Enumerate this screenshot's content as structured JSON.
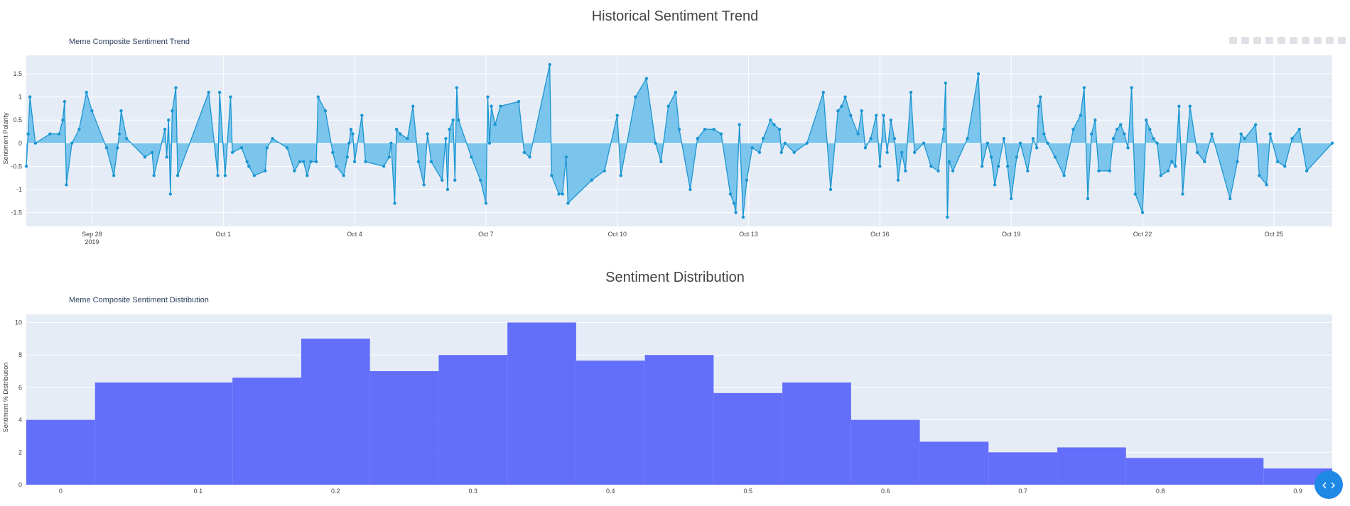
{
  "titles": {
    "trend_section": "Historical Sentiment Trend",
    "trend_chart": "Meme Composite Sentiment Trend",
    "dist_section": "Sentiment Distribution",
    "dist_chart": "Meme Composite Sentiment Distribution"
  },
  "colors": {
    "plot_bg": "#e5ecf6",
    "line": "#1b96d1",
    "fill": "#69bdea",
    "bar": "#636efa",
    "fab": "#1e88e5"
  },
  "fab_icon": "code-icon",
  "chart_data": [
    {
      "type": "area",
      "title": "Meme Composite Sentiment Trend",
      "ylabel": "Sentiment Polarity",
      "xlabel": "",
      "x_range": [
        "2019-09-26T12:00",
        "2019-10-26T08:00"
      ],
      "ylim": [
        -1.8,
        1.9
      ],
      "yticks": [
        -1.5,
        -1,
        -0.5,
        0,
        0.5,
        1,
        1.5
      ],
      "ytick_labels": [
        "-1.5",
        "-1",
        "-0.5",
        "0",
        "0.5",
        "1",
        "1.5"
      ],
      "xticks": [
        {
          "date": "2019-09-28T00:00",
          "label": "Sep 28",
          "sub": "2019"
        },
        {
          "date": "2019-10-01T00:00",
          "label": "Oct 1",
          "sub": ""
        },
        {
          "date": "2019-10-04T00:00",
          "label": "Oct 4",
          "sub": ""
        },
        {
          "date": "2019-10-07T00:00",
          "label": "Oct 7",
          "sub": ""
        },
        {
          "date": "2019-10-10T00:00",
          "label": "Oct 10",
          "sub": ""
        },
        {
          "date": "2019-10-13T00:00",
          "label": "Oct 13",
          "sub": ""
        },
        {
          "date": "2019-10-16T00:00",
          "label": "Oct 16",
          "sub": ""
        },
        {
          "date": "2019-10-19T00:00",
          "label": "Oct 19",
          "sub": ""
        },
        {
          "date": "2019-10-22T00:00",
          "label": "Oct 22",
          "sub": ""
        },
        {
          "date": "2019-10-25T00:00",
          "label": "Oct 25",
          "sub": ""
        }
      ],
      "points": [
        [
          "2019-09-26T12:00",
          -0.5
        ],
        [
          "2019-09-26T13:00",
          0.2
        ],
        [
          "2019-09-26T14:00",
          1.0
        ],
        [
          "2019-09-26T17:00",
          0.0
        ],
        [
          "2019-09-27T01:00",
          0.2
        ],
        [
          "2019-09-27T06:00",
          0.2
        ],
        [
          "2019-09-27T08:00",
          0.5
        ],
        [
          "2019-09-27T09:00",
          0.9
        ],
        [
          "2019-09-27T10:00",
          -0.9
        ],
        [
          "2019-09-27T13:00",
          0.0
        ],
        [
          "2019-09-27T17:00",
          0.3
        ],
        [
          "2019-09-27T21:00",
          1.1
        ],
        [
          "2019-09-28T00:00",
          0.7
        ],
        [
          "2019-09-28T08:00",
          -0.1
        ],
        [
          "2019-09-28T12:00",
          -0.7
        ],
        [
          "2019-09-28T14:00",
          -0.1
        ],
        [
          "2019-09-28T15:00",
          0.2
        ],
        [
          "2019-09-28T16:00",
          0.7
        ],
        [
          "2019-09-28T19:00",
          0.1
        ],
        [
          "2019-09-29T05:00",
          -0.3
        ],
        [
          "2019-09-29T09:00",
          -0.2
        ],
        [
          "2019-09-29T10:00",
          -0.7
        ],
        [
          "2019-09-29T16:00",
          0.3
        ],
        [
          "2019-09-29T17:00",
          -0.3
        ],
        [
          "2019-09-29T18:00",
          0.5
        ],
        [
          "2019-09-29T19:00",
          -1.1
        ],
        [
          "2019-09-29T20:00",
          0.7
        ],
        [
          "2019-09-29T22:00",
          1.2
        ],
        [
          "2019-09-29T23:00",
          -0.7
        ],
        [
          "2019-09-30T16:00",
          1.1
        ],
        [
          "2019-09-30T21:00",
          -0.7
        ],
        [
          "2019-09-30T22:00",
          1.1
        ],
        [
          "2019-10-01T01:00",
          -0.7
        ],
        [
          "2019-10-01T04:00",
          1.0
        ],
        [
          "2019-10-01T05:00",
          -0.2
        ],
        [
          "2019-10-01T10:00",
          -0.1
        ],
        [
          "2019-10-01T13:00",
          -0.4
        ],
        [
          "2019-10-01T14:00",
          -0.5
        ],
        [
          "2019-10-01T17:00",
          -0.7
        ],
        [
          "2019-10-01T23:00",
          -0.6
        ],
        [
          "2019-10-02T00:00",
          -0.1
        ],
        [
          "2019-10-02T03:00",
          0.1
        ],
        [
          "2019-10-02T11:00",
          -0.1
        ],
        [
          "2019-10-02T15:00",
          -0.6
        ],
        [
          "2019-10-02T18:00",
          -0.4
        ],
        [
          "2019-10-02T20:00",
          -0.4
        ],
        [
          "2019-10-02T22:00",
          -0.7
        ],
        [
          "2019-10-03T00:00",
          -0.4
        ],
        [
          "2019-10-03T03:00",
          -0.4
        ],
        [
          "2019-10-03T04:00",
          1.0
        ],
        [
          "2019-10-03T08:00",
          0.7
        ],
        [
          "2019-10-03T12:00",
          -0.2
        ],
        [
          "2019-10-03T14:00",
          -0.5
        ],
        [
          "2019-10-03T18:00",
          -0.7
        ],
        [
          "2019-10-03T20:00",
          -0.3
        ],
        [
          "2019-10-03T21:00",
          0.0
        ],
        [
          "2019-10-03T22:00",
          0.3
        ],
        [
          "2019-10-03T23:00",
          0.2
        ],
        [
          "2019-10-04T00:00",
          -0.4
        ],
        [
          "2019-10-04T04:00",
          0.6
        ],
        [
          "2019-10-04T06:00",
          -0.4
        ],
        [
          "2019-10-04T16:00",
          -0.5
        ],
        [
          "2019-10-04T19:00",
          -0.3
        ],
        [
          "2019-10-04T20:00",
          0.0
        ],
        [
          "2019-10-04T22:00",
          -1.3
        ],
        [
          "2019-10-04T23:00",
          0.3
        ],
        [
          "2019-10-05T01:00",
          0.2
        ],
        [
          "2019-10-05T05:00",
          0.1
        ],
        [
          "2019-10-05T08:00",
          0.8
        ],
        [
          "2019-10-05T11:00",
          -0.4
        ],
        [
          "2019-10-05T14:00",
          -0.9
        ],
        [
          "2019-10-05T16:00",
          0.2
        ],
        [
          "2019-10-05T18:00",
          -0.4
        ],
        [
          "2019-10-06T00:00",
          -0.8
        ],
        [
          "2019-10-06T02:00",
          0.1
        ],
        [
          "2019-10-06T03:00",
          -1.0
        ],
        [
          "2019-10-06T04:00",
          0.3
        ],
        [
          "2019-10-06T06:00",
          0.5
        ],
        [
          "2019-10-06T07:00",
          -0.8
        ],
        [
          "2019-10-06T08:00",
          1.2
        ],
        [
          "2019-10-06T09:00",
          0.5
        ],
        [
          "2019-10-06T16:00",
          -0.3
        ],
        [
          "2019-10-06T21:00",
          -0.8
        ],
        [
          "2019-10-07T00:00",
          -1.3
        ],
        [
          "2019-10-07T01:00",
          1.0
        ],
        [
          "2019-10-07T02:00",
          0.0
        ],
        [
          "2019-10-07T03:00",
          0.8
        ],
        [
          "2019-10-07T05:00",
          0.4
        ],
        [
          "2019-10-07T08:00",
          0.8
        ],
        [
          "2019-10-07T18:00",
          0.9
        ],
        [
          "2019-10-07T21:00",
          -0.2
        ],
        [
          "2019-10-08T00:00",
          -0.3
        ],
        [
          "2019-10-08T11:00",
          1.7
        ],
        [
          "2019-10-08T12:00",
          -0.7
        ],
        [
          "2019-10-08T16:00",
          -1.1
        ],
        [
          "2019-10-08T18:00",
          -1.1
        ],
        [
          "2019-10-08T20:00",
          -0.3
        ],
        [
          "2019-10-08T21:00",
          -1.3
        ],
        [
          "2019-10-09T10:00",
          -0.8
        ],
        [
          "2019-10-09T17:00",
          -0.6
        ],
        [
          "2019-10-10T00:00",
          0.6
        ],
        [
          "2019-10-10T02:00",
          -0.7
        ],
        [
          "2019-10-10T10:00",
          1.0
        ],
        [
          "2019-10-10T16:00",
          1.4
        ],
        [
          "2019-10-10T21:00",
          0.0
        ],
        [
          "2019-10-11T00:00",
          -0.4
        ],
        [
          "2019-10-11T04:00",
          0.8
        ],
        [
          "2019-10-11T08:00",
          1.1
        ],
        [
          "2019-10-11T10:00",
          0.3
        ],
        [
          "2019-10-11T16:00",
          -1.0
        ],
        [
          "2019-10-11T20:00",
          0.1
        ],
        [
          "2019-10-12T00:00",
          0.3
        ],
        [
          "2019-10-12T05:00",
          0.3
        ],
        [
          "2019-10-12T09:00",
          0.2
        ],
        [
          "2019-10-12T14:00",
          -1.1
        ],
        [
          "2019-10-12T16:00",
          -1.3
        ],
        [
          "2019-10-12T17:00",
          -1.5
        ],
        [
          "2019-10-12T19:00",
          0.4
        ],
        [
          "2019-10-12T21:00",
          -1.6
        ],
        [
          "2019-10-12T23:00",
          -0.8
        ],
        [
          "2019-10-13T02:00",
          -0.1
        ],
        [
          "2019-10-13T06:00",
          -0.2
        ],
        [
          "2019-10-13T08:00",
          0.1
        ],
        [
          "2019-10-13T12:00",
          0.5
        ],
        [
          "2019-10-13T14:00",
          0.4
        ],
        [
          "2019-10-13T17:00",
          0.3
        ],
        [
          "2019-10-13T18:00",
          -0.2
        ],
        [
          "2019-10-13T20:00",
          0.0
        ],
        [
          "2019-10-14T01:00",
          -0.2
        ],
        [
          "2019-10-14T08:00",
          0.0
        ],
        [
          "2019-10-14T17:00",
          1.1
        ],
        [
          "2019-10-14T21:00",
          -1.0
        ],
        [
          "2019-10-15T01:00",
          0.7
        ],
        [
          "2019-10-15T03:00",
          0.8
        ],
        [
          "2019-10-15T05:00",
          1.0
        ],
        [
          "2019-10-15T08:00",
          0.6
        ],
        [
          "2019-10-15T12:00",
          0.2
        ],
        [
          "2019-10-15T14:00",
          0.7
        ],
        [
          "2019-10-15T16:00",
          -0.1
        ],
        [
          "2019-10-15T19:00",
          0.1
        ],
        [
          "2019-10-15T22:00",
          0.6
        ],
        [
          "2019-10-16T00:00",
          -0.5
        ],
        [
          "2019-10-16T02:00",
          0.6
        ],
        [
          "2019-10-16T04:00",
          -0.2
        ],
        [
          "2019-10-16T06:00",
          0.5
        ],
        [
          "2019-10-16T08:00",
          0.1
        ],
        [
          "2019-10-16T10:00",
          -0.8
        ],
        [
          "2019-10-16T12:00",
          -0.2
        ],
        [
          "2019-10-16T14:00",
          -0.6
        ],
        [
          "2019-10-16T17:00",
          1.1
        ],
        [
          "2019-10-16T19:00",
          -0.2
        ],
        [
          "2019-10-17T00:00",
          0.0
        ],
        [
          "2019-10-17T04:00",
          -0.5
        ],
        [
          "2019-10-17T08:00",
          -0.6
        ],
        [
          "2019-10-17T11:00",
          0.3
        ],
        [
          "2019-10-17T12:00",
          1.3
        ],
        [
          "2019-10-17T13:00",
          -1.6
        ],
        [
          "2019-10-17T14:00",
          -0.4
        ],
        [
          "2019-10-17T16:00",
          -0.6
        ],
        [
          "2019-10-18T00:00",
          0.1
        ],
        [
          "2019-10-18T06:00",
          1.5
        ],
        [
          "2019-10-18T08:00",
          -0.5
        ],
        [
          "2019-10-18T11:00",
          0.0
        ],
        [
          "2019-10-18T13:00",
          -0.3
        ],
        [
          "2019-10-18T15:00",
          -0.9
        ],
        [
          "2019-10-18T17:00",
          -0.5
        ],
        [
          "2019-10-18T20:00",
          0.1
        ],
        [
          "2019-10-18T22:00",
          -0.5
        ],
        [
          "2019-10-19T00:00",
          -1.2
        ],
        [
          "2019-10-19T03:00",
          -0.3
        ],
        [
          "2019-10-19T05:00",
          0.0
        ],
        [
          "2019-10-19T09:00",
          -0.6
        ],
        [
          "2019-10-19T12:00",
          0.1
        ],
        [
          "2019-10-19T14:00",
          -0.1
        ],
        [
          "2019-10-19T15:00",
          0.8
        ],
        [
          "2019-10-19T16:00",
          1.0
        ],
        [
          "2019-10-19T18:00",
          0.2
        ],
        [
          "2019-10-19T20:00",
          0.0
        ],
        [
          "2019-10-20T00:00",
          -0.3
        ],
        [
          "2019-10-20T05:00",
          -0.7
        ],
        [
          "2019-10-20T10:00",
          0.3
        ],
        [
          "2019-10-20T14:00",
          0.6
        ],
        [
          "2019-10-20T16:00",
          1.2
        ],
        [
          "2019-10-20T18:00",
          -1.2
        ],
        [
          "2019-10-20T20:00",
          0.2
        ],
        [
          "2019-10-20T22:00",
          0.5
        ],
        [
          "2019-10-21T00:00",
          -0.6
        ],
        [
          "2019-10-21T06:00",
          -0.6
        ],
        [
          "2019-10-21T08:00",
          0.1
        ],
        [
          "2019-10-21T10:00",
          0.3
        ],
        [
          "2019-10-21T12:00",
          0.4
        ],
        [
          "2019-10-21T14:00",
          0.2
        ],
        [
          "2019-10-21T16:00",
          -0.1
        ],
        [
          "2019-10-21T18:00",
          1.2
        ],
        [
          "2019-10-21T20:00",
          -1.1
        ],
        [
          "2019-10-22T00:00",
          -1.5
        ],
        [
          "2019-10-22T02:00",
          0.5
        ],
        [
          "2019-10-22T04:00",
          0.3
        ],
        [
          "2019-10-22T06:00",
          0.1
        ],
        [
          "2019-10-22T08:00",
          0.0
        ],
        [
          "2019-10-22T10:00",
          -0.7
        ],
        [
          "2019-10-22T14:00",
          -0.6
        ],
        [
          "2019-10-22T16:00",
          -0.4
        ],
        [
          "2019-10-22T18:00",
          -0.5
        ],
        [
          "2019-10-22T20:00",
          0.8
        ],
        [
          "2019-10-22T22:00",
          -1.1
        ],
        [
          "2019-10-23T02:00",
          0.8
        ],
        [
          "2019-10-23T06:00",
          -0.2
        ],
        [
          "2019-10-23T10:00",
          -0.4
        ],
        [
          "2019-10-23T14:00",
          0.2
        ],
        [
          "2019-10-24T00:00",
          -1.2
        ],
        [
          "2019-10-24T04:00",
          -0.4
        ],
        [
          "2019-10-24T06:00",
          0.2
        ],
        [
          "2019-10-24T08:00",
          0.1
        ],
        [
          "2019-10-24T14:00",
          0.4
        ],
        [
          "2019-10-24T16:00",
          -0.7
        ],
        [
          "2019-10-24T20:00",
          -0.9
        ],
        [
          "2019-10-24T22:00",
          0.2
        ],
        [
          "2019-10-25T02:00",
          -0.4
        ],
        [
          "2019-10-25T06:00",
          -0.5
        ],
        [
          "2019-10-25T10:00",
          0.1
        ],
        [
          "2019-10-25T14:00",
          0.3
        ],
        [
          "2019-10-25T18:00",
          -0.6
        ],
        [
          "2019-10-26T08:00",
          0.0
        ]
      ]
    },
    {
      "type": "bar",
      "title": "Meme Composite Sentiment Distribution",
      "ylabel": "Sentiment % Distribution",
      "xlabel": "",
      "bin_width": 0.05,
      "x_range": [
        -0.025,
        0.925
      ],
      "ylim": [
        0,
        10.5
      ],
      "yticks": [
        0,
        2,
        4,
        6,
        8,
        10
      ],
      "xticks": [
        0,
        0.1,
        0.2,
        0.3,
        0.4,
        0.5,
        0.6,
        0.7,
        0.8,
        0.9
      ],
      "bins": [
        [
          0.0,
          4.0
        ],
        [
          0.05,
          6.3
        ],
        [
          0.1,
          6.3
        ],
        [
          0.15,
          6.6
        ],
        [
          0.2,
          9.0
        ],
        [
          0.25,
          7.0
        ],
        [
          0.3,
          8.0
        ],
        [
          0.35,
          10.0
        ],
        [
          0.4,
          7.65
        ],
        [
          0.45,
          8.0
        ],
        [
          0.5,
          5.65
        ],
        [
          0.55,
          6.3
        ],
        [
          0.6,
          4.0
        ],
        [
          0.65,
          2.65
        ],
        [
          0.7,
          2.0
        ],
        [
          0.75,
          2.3
        ],
        [
          0.8,
          1.65
        ],
        [
          0.85,
          1.65
        ],
        [
          0.9,
          1.0
        ]
      ]
    }
  ]
}
